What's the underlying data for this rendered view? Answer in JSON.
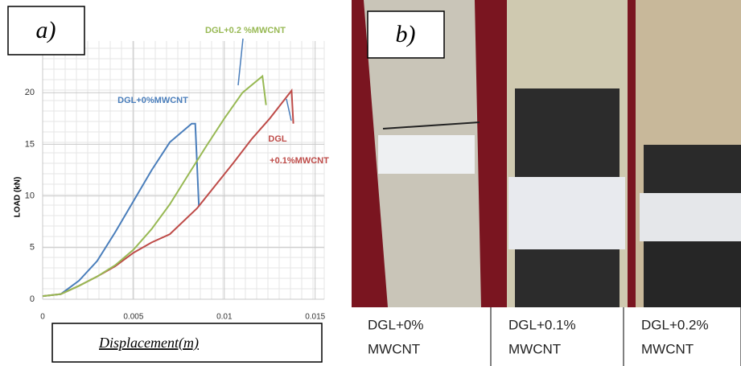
{
  "chart_data": {
    "type": "line",
    "panel_label": "a)",
    "y_label": "LOAD (kN)",
    "x_label": "Displacement(m)",
    "xlim": [
      0,
      0.0155
    ],
    "ylim": [
      0,
      25
    ],
    "xticks": [
      0,
      0.005,
      0.01,
      0.015
    ],
    "yticks": [
      0,
      5,
      10,
      15,
      20
    ],
    "grid": true,
    "annotations": [
      "DGL+0%MWCNT",
      "DGL+0.2 %MWCNT",
      "DGL",
      "+0.1%MWCNT"
    ],
    "series": [
      {
        "color": "#4a7ebb",
        "x": [
          0,
          0.001,
          0.002,
          0.003,
          0.004,
          0.005,
          0.006,
          0.007,
          0.0082,
          0.0084,
          0.0086
        ],
        "values": [
          0.3,
          0.5,
          1.8,
          3.7,
          6.5,
          9.5,
          12.5,
          15.2,
          17.0,
          17.0,
          9.0
        ]
      },
      {
        "color": "#be4b48",
        "x": [
          0,
          0.001,
          0.002,
          0.003,
          0.004,
          0.005,
          0.006,
          0.007,
          0.0085,
          0.0095,
          0.0105,
          0.0115,
          0.0125,
          0.0137,
          0.0138
        ],
        "values": [
          0.3,
          0.5,
          1.3,
          2.2,
          3.2,
          4.5,
          5.5,
          6.3,
          8.8,
          11.0,
          13.2,
          15.5,
          17.5,
          20.2,
          17.0
        ]
      },
      {
        "color": "#98b954",
        "x": [
          0,
          0.001,
          0.002,
          0.003,
          0.004,
          0.005,
          0.006,
          0.007,
          0.008,
          0.009,
          0.01,
          0.011,
          0.0121,
          0.0123
        ],
        "values": [
          0.3,
          0.5,
          1.3,
          2.2,
          3.3,
          4.8,
          6.8,
          9.2,
          12.0,
          14.8,
          17.5,
          20.0,
          21.6,
          18.8
        ]
      }
    ]
  },
  "photos": {
    "panel_label": "b)",
    "labels": [
      [
        "DGL+0%",
        "MWCNT"
      ],
      [
        "DGL+0.1%",
        "MWCNT"
      ],
      [
        "DGL+0.2%",
        "MWCNT"
      ]
    ]
  }
}
